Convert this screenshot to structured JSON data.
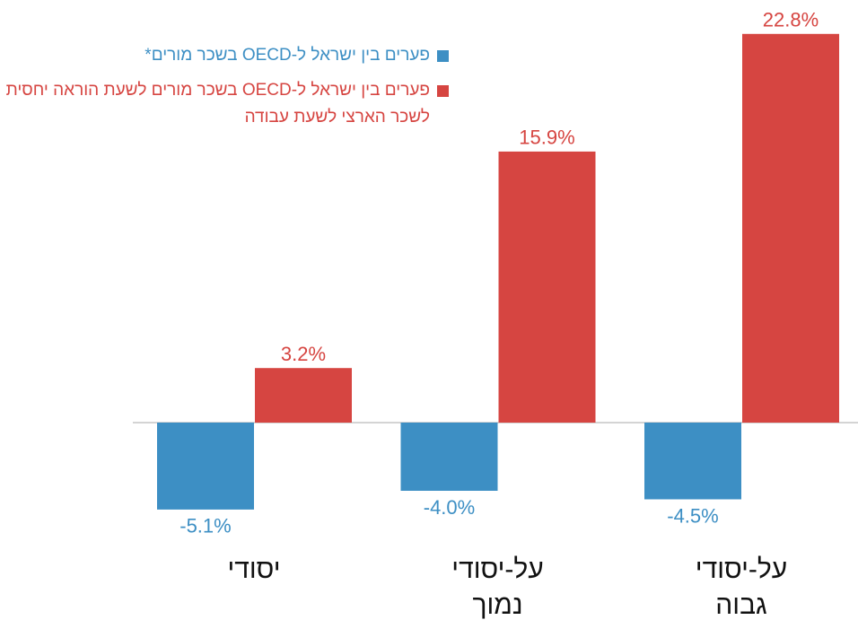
{
  "chart_data": {
    "type": "bar",
    "categories": [
      "יסודי",
      "על-יסודי נמוך",
      "על-יסודי גבוה"
    ],
    "series": [
      {
        "name": "פערים בין ישראל ל-OECD בשכר מורים*",
        "color": "#3d8fc4",
        "values": [
          -5.1,
          -4.0,
          -4.5
        ],
        "value_labels": [
          "-5.1%",
          "-4.0%",
          "-4.5%"
        ]
      },
      {
        "name": "פערים בין ישראל ל-OECD בשכר מורים לשעת הוראה יחסית לשכר הארצי לשעת עבודה",
        "color": "#d64541",
        "values": [
          3.2,
          15.9,
          22.8
        ],
        "value_labels": [
          "3.2%",
          "15.9%",
          "22.8%"
        ]
      }
    ],
    "legend": "top-left"
  }
}
